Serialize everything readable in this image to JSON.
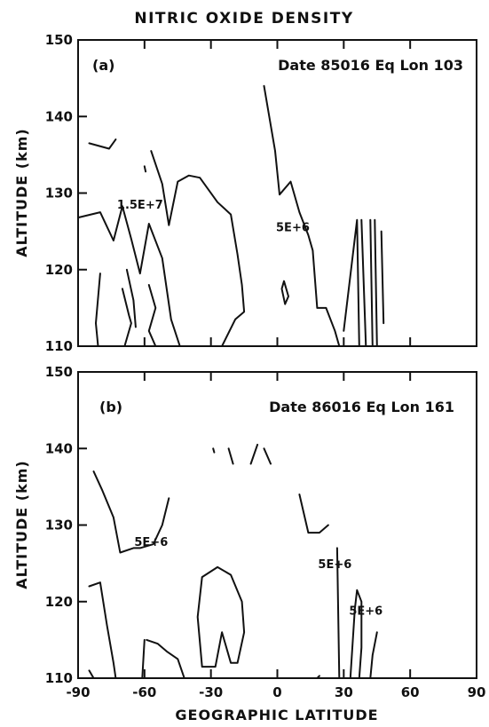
{
  "title": "NITRIC OXIDE DENSITY",
  "xlabel": "GEOGRAPHIC LATITUDE",
  "chart_data": [
    {
      "type": "contour",
      "panel": "(a)",
      "subtitle": "Date 85016  Eq Lon 103",
      "ylabel": "ALTITUDE (km)",
      "xlim": [
        -90,
        90
      ],
      "ylim": [
        110,
        150
      ],
      "xticks": [
        "-90",
        "-60",
        "-30",
        "0",
        "30",
        "60",
        "90"
      ],
      "yticks": [
        "110",
        "120",
        "130",
        "140",
        "150"
      ],
      "contour_labels": [
        {
          "text": "1.5E+7",
          "x": -62,
          "y": 128
        },
        {
          "text": "5E+6",
          "x": 7,
          "y": 125
        }
      ],
      "contours": [
        [
          [
            -85,
            136.5
          ],
          [
            -76,
            135.8
          ],
          [
            -73,
            137
          ]
        ],
        [
          [
            -60,
            133.5
          ],
          [
            -59.5,
            132.8
          ]
        ],
        [
          [
            -90,
            126.8
          ],
          [
            -80,
            127.5
          ],
          [
            -74,
            123.8
          ],
          [
            -70,
            128.3
          ],
          [
            -66,
            124
          ],
          [
            -62,
            119.5
          ],
          [
            -58,
            126
          ],
          [
            -52,
            121.5
          ],
          [
            -48,
            113.5
          ],
          [
            -44,
            110
          ]
        ],
        [
          [
            -57,
            135.5
          ],
          [
            -52,
            131.2
          ],
          [
            -49,
            125.8
          ],
          [
            -45,
            131.5
          ],
          [
            -40,
            132.3
          ],
          [
            -35,
            132
          ],
          [
            -27,
            128.8
          ],
          [
            -21,
            127.2
          ],
          [
            -18,
            122
          ],
          [
            -16,
            118
          ],
          [
            -15,
            114.5
          ],
          [
            -19,
            113.5
          ],
          [
            -25,
            110
          ]
        ],
        [
          [
            -80,
            119.5
          ],
          [
            -82,
            113
          ],
          [
            -81,
            110
          ]
        ],
        [
          [
            -70,
            117.5
          ],
          [
            -67,
            114
          ],
          [
            -66,
            113
          ],
          [
            -69,
            110
          ]
        ],
        [
          [
            -68,
            120
          ],
          [
            -65,
            116
          ],
          [
            -64,
            112.5
          ]
        ],
        [
          [
            -58,
            118
          ],
          [
            -55,
            115
          ],
          [
            -58,
            112
          ],
          [
            -55,
            110
          ]
        ],
        [
          [
            -6,
            144
          ],
          [
            -1,
            135.5
          ],
          [
            1,
            129.8
          ],
          [
            6,
            131.5
          ],
          [
            10,
            127.5
          ],
          [
            14,
            124.5
          ],
          [
            16,
            122.5
          ],
          [
            18,
            115
          ],
          [
            22,
            115
          ],
          [
            26,
            112
          ],
          [
            28,
            110
          ]
        ],
        [
          [
            2,
            117.5
          ],
          [
            3,
            118.5
          ],
          [
            5,
            116.5
          ],
          [
            3.5,
            115.5
          ],
          [
            2,
            117.5
          ]
        ],
        [
          [
            30,
            112
          ],
          [
            36,
            126.5
          ],
          [
            37,
            110
          ]
        ],
        [
          [
            38,
            126.5
          ],
          [
            40,
            110
          ]
        ],
        [
          [
            42,
            126.5
          ],
          [
            43,
            110
          ]
        ],
        [
          [
            44,
            126.5
          ],
          [
            45,
            110
          ]
        ],
        [
          [
            47,
            125
          ],
          [
            48,
            113
          ]
        ]
      ]
    },
    {
      "type": "contour",
      "panel": "(b)",
      "subtitle": "Date 86016  Eq Lon 161",
      "ylabel": "ALTITUDE (km)",
      "xlim": [
        -90,
        90
      ],
      "ylim": [
        110,
        150
      ],
      "xticks": [
        "-90",
        "-60",
        "-30",
        "0",
        "30",
        "60",
        "90"
      ],
      "yticks": [
        "110",
        "120",
        "130",
        "140",
        "150"
      ],
      "contour_labels": [
        {
          "text": "5E+6",
          "x": -57,
          "y": 127.3
        },
        {
          "text": "5E+6",
          "x": 26,
          "y": 124.4
        },
        {
          "text": "5E+6",
          "x": 40,
          "y": 118.3
        }
      ],
      "contours": [
        [
          [
            -83,
            137
          ],
          [
            -79,
            134.5
          ],
          [
            -74,
            131
          ],
          [
            -71,
            126.4
          ],
          [
            -65,
            127
          ],
          [
            -62,
            127
          ],
          [
            -56,
            127.5
          ],
          [
            -52,
            130
          ],
          [
            -49,
            133.5
          ]
        ],
        [
          [
            -85,
            122
          ],
          [
            -80,
            122.5
          ],
          [
            -77,
            117
          ],
          [
            -74,
            112
          ],
          [
            -73,
            110
          ]
        ],
        [
          [
            -85,
            111
          ],
          [
            -83,
            110
          ]
        ],
        [
          [
            -59,
            115
          ],
          [
            -54,
            114.5
          ],
          [
            -50,
            113.5
          ],
          [
            -45,
            112.5
          ],
          [
            -42,
            110
          ]
        ],
        [
          [
            -60,
            115
          ],
          [
            -61,
            110
          ]
        ],
        [
          [
            -34,
            111.5
          ],
          [
            -36,
            118
          ],
          [
            -34,
            123.2
          ],
          [
            -27,
            124.5
          ],
          [
            -21,
            123.5
          ],
          [
            -16,
            120
          ],
          [
            -15,
            116
          ],
          [
            -18,
            112
          ],
          [
            -21,
            112
          ],
          [
            -25,
            116
          ],
          [
            -28,
            111.5
          ],
          [
            -34,
            111.5
          ]
        ],
        [
          [
            -29,
            140
          ],
          [
            -28.5,
            139.5
          ]
        ],
        [
          [
            -22,
            140
          ],
          [
            -20,
            138
          ]
        ],
        [
          [
            -12,
            138
          ],
          [
            -9,
            140.5
          ]
        ],
        [
          [
            -6,
            140
          ],
          [
            -3,
            138
          ]
        ],
        [
          [
            10,
            134
          ],
          [
            14,
            129
          ],
          [
            19,
            129
          ],
          [
            23,
            130
          ]
        ],
        [
          [
            27,
            127
          ],
          [
            28,
            110
          ]
        ],
        [
          [
            33,
            110
          ],
          [
            35,
            119
          ],
          [
            36,
            121.5
          ],
          [
            38,
            120
          ],
          [
            38,
            114
          ],
          [
            37,
            110
          ]
        ],
        [
          [
            42,
            110
          ],
          [
            43,
            113
          ],
          [
            45,
            116
          ]
        ],
        [
          [
            18,
            110
          ],
          [
            19,
            110.3
          ]
        ]
      ]
    }
  ]
}
